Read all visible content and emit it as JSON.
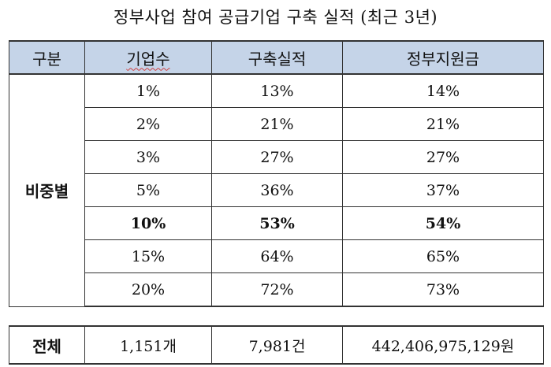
{
  "title": "정부사업 참여 공급기업 구축 실적 (최근 3년)",
  "headers": [
    "구분",
    "기업수",
    "구축실적",
    "정부지원금"
  ],
  "group_label": "비중별",
  "rows": [
    [
      "1%",
      "13%",
      "14%"
    ],
    [
      "2%",
      "21%",
      "21%"
    ],
    [
      "3%",
      "27%",
      "27%"
    ],
    [
      "5%",
      "36%",
      "37%"
    ],
    [
      "10%",
      "53%",
      "54%"
    ],
    [
      "15%",
      "64%",
      "65%"
    ],
    [
      "20%",
      "72%",
      "73%"
    ]
  ],
  "bold_row_index": 4,
  "total": {
    "label": "전체",
    "companies": "1,151개",
    "projects": "7,981건",
    "subsidy": "442,406,975,129원"
  },
  "colors": {
    "header_bg": "#c5d4e8",
    "border": "#333333"
  }
}
